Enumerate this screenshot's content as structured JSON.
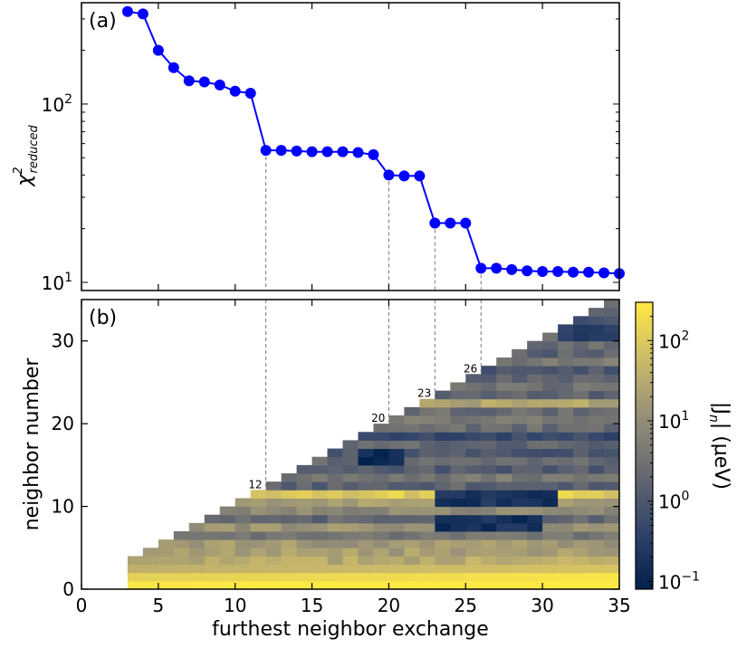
{
  "chart_data": [
    {
      "type": "line",
      "panel_label": "(a)",
      "ylabel": "χ²reduced",
      "ylabel_symbol": "χ",
      "ylabel_sup": "2",
      "ylabel_sub": "reduced",
      "yscale": "log",
      "ylim": [
        9,
        370
      ],
      "xlim": [
        0,
        35
      ],
      "yticks": [
        10,
        100
      ],
      "ytick_labels": [
        {
          "base": "10",
          "exp": "1"
        },
        {
          "base": "10",
          "exp": "2"
        }
      ],
      "grid": false,
      "series": [
        {
          "color": "#0000ff",
          "marker": "circle",
          "x": [
            3,
            4,
            5,
            6,
            7,
            8,
            9,
            10,
            11,
            12,
            13,
            14,
            15,
            16,
            17,
            18,
            19,
            20,
            21,
            22,
            23,
            24,
            25,
            26,
            27,
            28,
            29,
            30,
            31,
            32,
            33,
            34,
            35
          ],
          "y": [
            330,
            320,
            200,
            160,
            135,
            133,
            128,
            118,
            115,
            55,
            55,
            54.5,
            54,
            54,
            54,
            53.5,
            52,
            40,
            39.5,
            39.5,
            21.5,
            21.5,
            21.5,
            12,
            12,
            11.8,
            11.6,
            11.5,
            11.5,
            11.4,
            11.4,
            11.3,
            11.2
          ]
        }
      ],
      "vlines": [
        12,
        20,
        23,
        26
      ]
    },
    {
      "type": "heatmap",
      "panel_label": "(b)",
      "xlabel": "furthest neighbor exchange",
      "ylabel": "neighbor number",
      "xlim": [
        0,
        35
      ],
      "ylim": [
        0,
        35
      ],
      "xticks": [
        0,
        5,
        10,
        15,
        20,
        25,
        30,
        35
      ],
      "xtick_labels": [
        "0",
        "5",
        "10",
        "15",
        "20",
        "25",
        "30",
        "35"
      ],
      "yticks": [
        0,
        10,
        20,
        30
      ],
      "ytick_labels": [
        "0",
        "10",
        "20",
        "30"
      ],
      "colorbar": {
        "label": "|J_n| (μeV)",
        "label_main": "|J",
        "label_sub": "n",
        "label_rest": "| (μeV)",
        "scale": "log",
        "range": [
          0.08,
          300
        ],
        "ticks": [
          0.1,
          1,
          10,
          100
        ],
        "tick_labels": [
          {
            "base": "10",
            "exp": "−1"
          },
          {
            "base": "10",
            "exp": "0"
          },
          {
            "base": "10",
            "exp": "1"
          },
          {
            "base": "10",
            "exp": "2"
          }
        ],
        "colors": [
          "#00204c",
          "#31446b",
          "#666970",
          "#958f78",
          "#cbba69",
          "#ffe945"
        ]
      },
      "annotations": [
        {
          "x": 12,
          "y": 12,
          "text": "12"
        },
        {
          "x": 20,
          "y": 20,
          "text": "20"
        },
        {
          "x": 23,
          "y": 23,
          "text": "23"
        },
        {
          "x": 26,
          "y": 26,
          "text": "26"
        }
      ],
      "row_values_log10": [
        2.4,
        2.1,
        1.6,
        1.5,
        1.3,
        1.2,
        0.6,
        1.1,
        0.3,
        0.9,
        1.3,
        2.0,
        0.2,
        0.6,
        0.1,
        0.3,
        0.0,
        0.3,
        -0.3,
        0.4,
        0.6,
        0.4,
        1.4,
        0.2,
        0.5,
        0.3,
        0.0,
        0.6,
        0.2,
        0.4,
        0.3,
        0.0,
        -0.2,
        0.4,
        0.3
      ],
      "cells_log10": [
        [
          1.4,
          1.6,
          2.2
        ],
        [
          1.3,
          1.5,
          1.7,
          1.9,
          2.1
        ],
        [
          1.0,
          1.1,
          1.3,
          1.4,
          1.5,
          1.6,
          1.7
        ],
        [
          -0.3,
          -0.6,
          -0.8
        ],
        [
          0.1,
          0.0,
          -0.1
        ],
        [
          -1.0,
          -0.8,
          -0.9,
          -0.7,
          -0.6
        ],
        [
          -0.2,
          -0.4,
          -0.6,
          -0.5
        ],
        [
          -0.3,
          -0.5,
          -0.7,
          -0.9,
          -1.1,
          -1.0,
          -0.8
        ],
        [
          -0.1,
          -0.4,
          -0.5,
          -0.3
        ],
        [
          0.1,
          -0.1,
          0.2,
          0.3
        ]
      ]
    }
  ]
}
